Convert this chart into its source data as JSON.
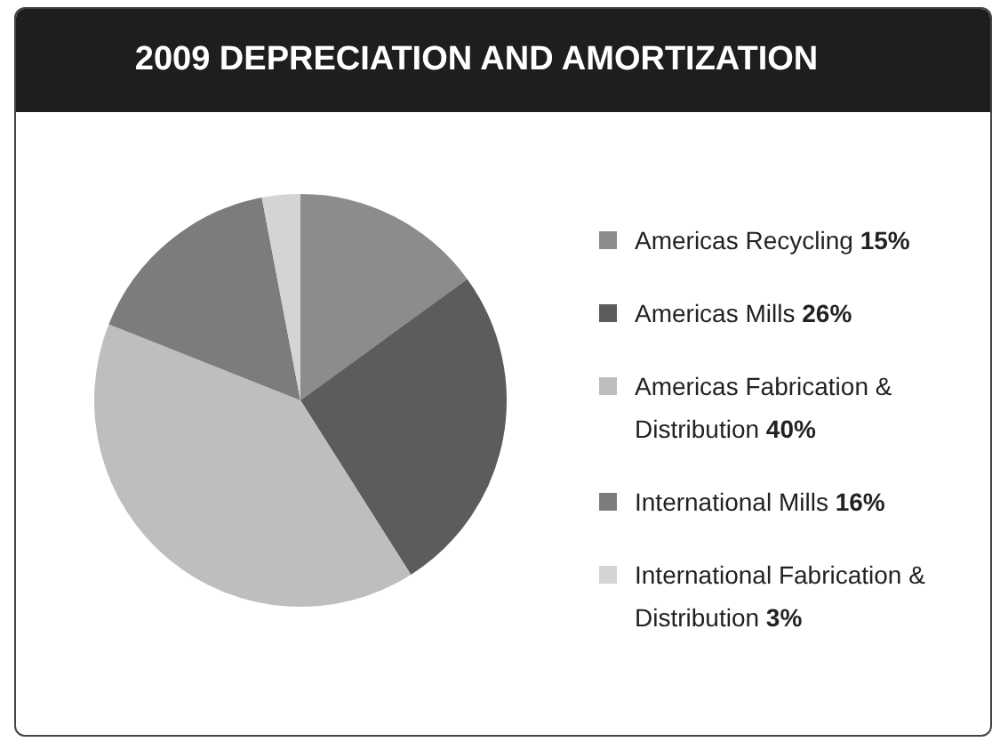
{
  "chart_data": {
    "type": "pie",
    "title": "2009 DEPRECIATION AND AMORTIZATION",
    "categories": [
      "Americas Recycling",
      "Americas Mills",
      "Americas Fabrication & Distribution",
      "International Mills",
      "International Fabrication & Distribution"
    ],
    "values": [
      15,
      26,
      40,
      16,
      3
    ],
    "value_labels": [
      "15%",
      "26%",
      "40%",
      "16%",
      "3%"
    ],
    "colors": [
      "#8c8c8c",
      "#5c5c5c",
      "#bebebe",
      "#7c7c7c",
      "#d4d4d4"
    ],
    "legend": "right"
  }
}
